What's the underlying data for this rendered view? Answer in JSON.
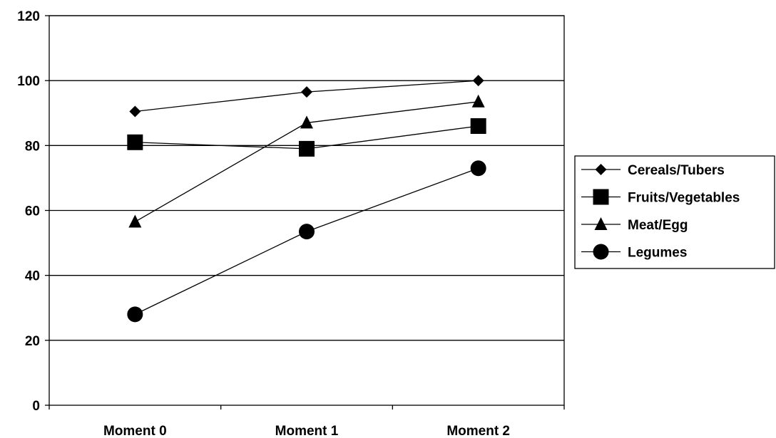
{
  "chart_data": {
    "type": "line",
    "categories": [
      "Moment 0",
      "Moment 1",
      "Moment 2"
    ],
    "series": [
      {
        "name": "Cereals/Tubers",
        "values": [
          90.5,
          96.5,
          100
        ],
        "marker": "diamond"
      },
      {
        "name": "Fruits/Vegetables",
        "values": [
          81,
          79,
          86
        ],
        "marker": "square"
      },
      {
        "name": "Meat/Egg",
        "values": [
          56.5,
          87,
          93.5
        ],
        "marker": "triangle"
      },
      {
        "name": "Legumes",
        "values": [
          28,
          53.5,
          73
        ],
        "marker": "circle"
      }
    ],
    "yticks": [
      0,
      20,
      40,
      60,
      80,
      100,
      120
    ],
    "ylim": [
      0,
      120
    ],
    "grid": true,
    "legend_position": "right",
    "title": "",
    "xlabel": "",
    "ylabel": ""
  }
}
